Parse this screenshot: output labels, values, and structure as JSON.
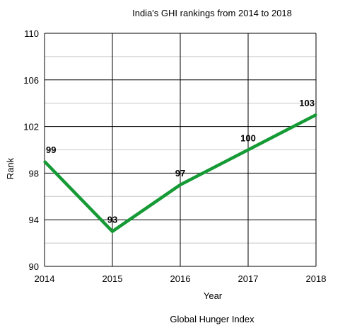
{
  "chart_data": {
    "type": "line",
    "title": "India's GHI rankings from 2014 to 2018",
    "xlabel": "Year",
    "ylabel": "Rank",
    "caption": "Global Hunger Index",
    "x": [
      "2014",
      "2015",
      "2016",
      "2017",
      "2018"
    ],
    "series": [
      {
        "values": [
          99,
          93,
          97,
          100,
          103
        ],
        "color": "#159a35"
      }
    ],
    "data_labels": [
      "99",
      "93",
      "97",
      "100",
      "103"
    ],
    "y_ticks": [
      "90",
      "94",
      "98",
      "102",
      "106",
      "110"
    ],
    "ylim": [
      90,
      110
    ],
    "y_major_step": 4,
    "y_minor_step": 2,
    "grid": true,
    "legend": "none"
  }
}
